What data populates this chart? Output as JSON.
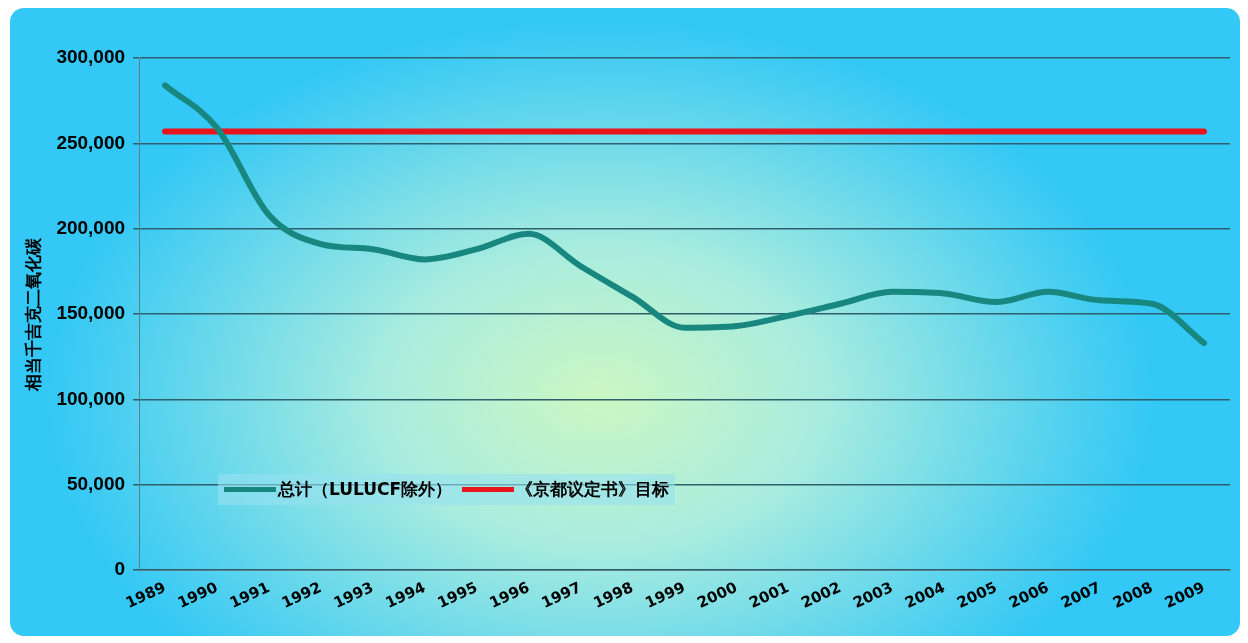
{
  "chart_data": {
    "type": "line",
    "ylabel": "相当千吉克二氧化碳",
    "categories": [
      "1989",
      "1990",
      "1991",
      "1992",
      "1993",
      "1994",
      "1995",
      "1996",
      "1997",
      "1998",
      "1999",
      "2000",
      "2001",
      "2002",
      "2003",
      "2004",
      "2005",
      "2006",
      "2007",
      "2008",
      "2009"
    ],
    "series": [
      {
        "name": "总计（LULUCF除外）",
        "color": "#17877f",
        "values": [
          284000,
          259000,
          208000,
          191000,
          188000,
          182000,
          188000,
          197000,
          178000,
          160000,
          142000,
          143000,
          149000,
          156000,
          163000,
          162000,
          157000,
          163000,
          158000,
          156000,
          133000
        ]
      },
      {
        "name": "《京都议定书》目标",
        "color": "#e8141c",
        "values": [
          257000,
          257000,
          257000,
          257000,
          257000,
          257000,
          257000,
          257000,
          257000,
          257000,
          257000,
          257000,
          257000,
          257000,
          257000,
          257000,
          257000,
          257000,
          257000,
          257000,
          257000
        ]
      }
    ],
    "ylim": [
      0,
      300000
    ],
    "yticks": [
      0,
      {
        "value": 50000,
        "label": "50,000"
      },
      {
        "value": 100000,
        "label": "100,000"
      },
      {
        "value": 150000,
        "label": "150,000"
      },
      {
        "value": 200000,
        "label": "200,000"
      },
      {
        "value": 250000,
        "label": "250,000"
      },
      {
        "value": 300000,
        "label": "300,000"
      }
    ],
    "grid": "y",
    "legend": "bottom left",
    "marker": "none",
    "line_style": "solid"
  }
}
